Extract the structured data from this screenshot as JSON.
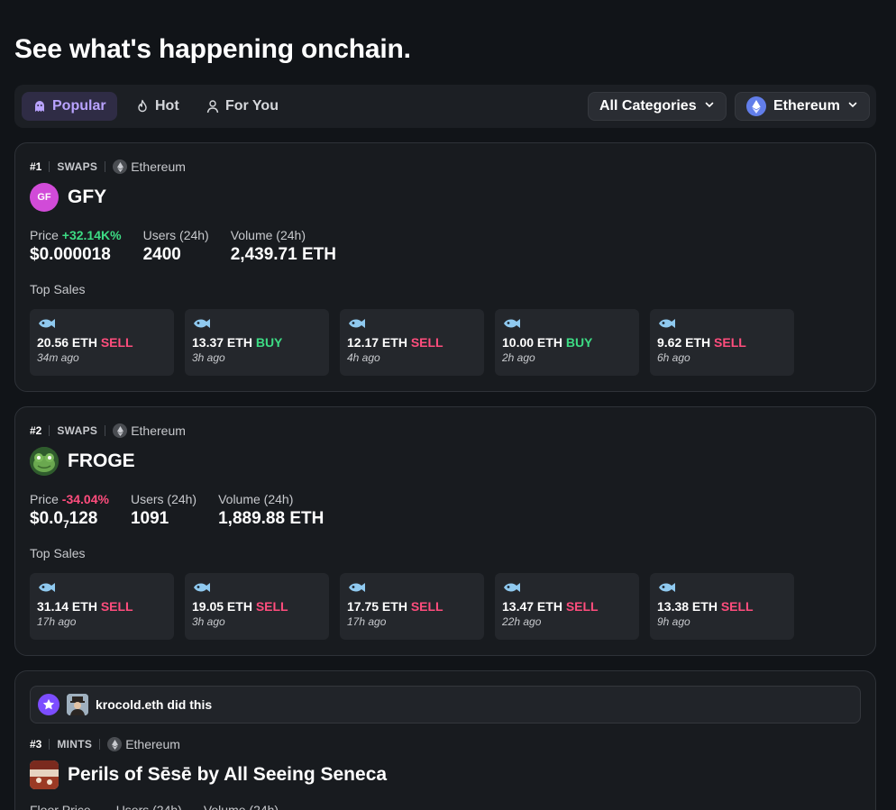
{
  "page": {
    "title": "See what's happening onchain."
  },
  "filters": {
    "tabs": [
      {
        "label": "Popular",
        "icon": "ghost-icon",
        "active": true
      },
      {
        "label": "Hot",
        "icon": "flame-icon",
        "active": false
      },
      {
        "label": "For You",
        "icon": "user-icon",
        "active": false
      }
    ],
    "category_dropdown": "All Categories",
    "chain_dropdown": "Ethereum"
  },
  "colors": {
    "accent": "#b9a3ff",
    "buy": "#3ddc84",
    "sell": "#ff4d7d",
    "eth": "#627eea"
  },
  "labels": {
    "price": "Price",
    "floor_price": "Floor Price",
    "users": "Users (24h)",
    "volume": "Volume (24h)",
    "top_sales": "Top Sales"
  },
  "cards": [
    {
      "rank": "#1",
      "category": "SWAPS",
      "chain": "Ethereum",
      "avatar_text": "GF",
      "name": "GFY",
      "price_change": "+32.14K%",
      "price_value": "$0.000018",
      "users": "2400",
      "volume": "2,439.71 ETH",
      "sales": [
        {
          "amount": "20.56 ETH",
          "side": "SELL",
          "time": "34m ago"
        },
        {
          "amount": "13.37 ETH",
          "side": "BUY",
          "time": "3h ago"
        },
        {
          "amount": "12.17 ETH",
          "side": "SELL",
          "time": "4h ago"
        },
        {
          "amount": "10.00 ETH",
          "side": "BUY",
          "time": "2h ago"
        },
        {
          "amount": "9.62 ETH",
          "side": "SELL",
          "time": "6h ago"
        }
      ]
    },
    {
      "rank": "#2",
      "category": "SWAPS",
      "chain": "Ethereum",
      "name": "FROGE",
      "price_change": "-34.04%",
      "price_value_main": "$0.0",
      "price_value_sub": "7",
      "price_value_tail": "128",
      "users": "1091",
      "volume": "1,889.88 ETH",
      "sales": [
        {
          "amount": "31.14 ETH",
          "side": "SELL",
          "time": "17h ago"
        },
        {
          "amount": "19.05 ETH",
          "side": "SELL",
          "time": "3h ago"
        },
        {
          "amount": "17.75 ETH",
          "side": "SELL",
          "time": "17h ago"
        },
        {
          "amount": "13.47 ETH",
          "side": "SELL",
          "time": "22h ago"
        },
        {
          "amount": "13.38 ETH",
          "side": "SELL",
          "time": "9h ago"
        }
      ]
    },
    {
      "activity": "krocold.eth did this",
      "rank": "#3",
      "category": "MINTS",
      "chain": "Ethereum",
      "name": "Perils of Sēsē by All Seeing Seneca"
    }
  ]
}
